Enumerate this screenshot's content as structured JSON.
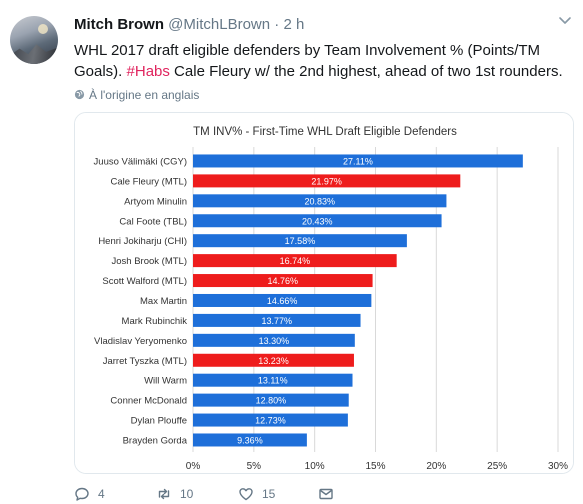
{
  "tweet": {
    "display_name": "Mitch Brown",
    "handle": "@MitchLBrown",
    "separator": "·",
    "time": "2 h",
    "text_part1": "WHL 2017 draft eligible defenders by Team Involvement % (Points/TM Goals).",
    "hashtag": "#Habs",
    "text_part2": " Cale Fleury w/ the 2nd highest, ahead of two 1st rounders.",
    "translate_label": "À l'origine en anglais"
  },
  "actions": {
    "reply_count": "4",
    "retweet_count": "10",
    "like_count": "15"
  },
  "icons": {
    "avatar": "profile-photo",
    "caret": "chevron-down-icon",
    "globe": "globe-icon",
    "reply": "reply-icon",
    "retweet": "retweet-icon",
    "like": "heart-icon",
    "dm": "envelope-icon"
  },
  "colors": {
    "blue_bar": "#1e6fd9",
    "red_bar": "#ee1c1c",
    "hashtag": "#e0245e",
    "meta_gray": "#657786"
  },
  "chart_data": {
    "type": "bar",
    "orientation": "horizontal",
    "title": "TM INV% - First-Time WHL Draft Eligible Defenders",
    "xlabel": "",
    "ylabel": "",
    "xlim": [
      0,
      30
    ],
    "xticks": [
      "0%",
      "5%",
      "10%",
      "15%",
      "20%",
      "25%",
      "30%"
    ],
    "grid": true,
    "legend": "none",
    "categories": [
      "Juuso Välimäki (CGY)",
      "Cale Fleury (MTL)",
      "Artyom Minulin",
      "Cal Foote (TBL)",
      "Henri Jokiharju (CHI)",
      "Josh Brook (MTL)",
      "Scott Walford (MTL)",
      "Max Martin",
      "Mark Rubinchik",
      "Vladislav Yeryomenko",
      "Jarret Tyszka (MTL)",
      "Will Warm",
      "Conner McDonald",
      "Dylan Plouffe",
      "Brayden Gorda"
    ],
    "values": [
      27.11,
      21.97,
      20.83,
      20.43,
      17.58,
      16.74,
      14.76,
      14.66,
      13.77,
      13.3,
      13.23,
      13.11,
      12.8,
      12.73,
      9.36
    ],
    "value_labels": [
      "27.11%",
      "21.97%",
      "20.83%",
      "20.43%",
      "17.58%",
      "16.74%",
      "14.76%",
      "14.66%",
      "13.77%",
      "13.30%",
      "13.23%",
      "13.11%",
      "12.80%",
      "12.73%",
      "9.36%"
    ],
    "bar_colors": [
      "blue",
      "red",
      "blue",
      "blue",
      "blue",
      "red",
      "red",
      "blue",
      "blue",
      "blue",
      "red",
      "blue",
      "blue",
      "blue",
      "blue"
    ]
  }
}
